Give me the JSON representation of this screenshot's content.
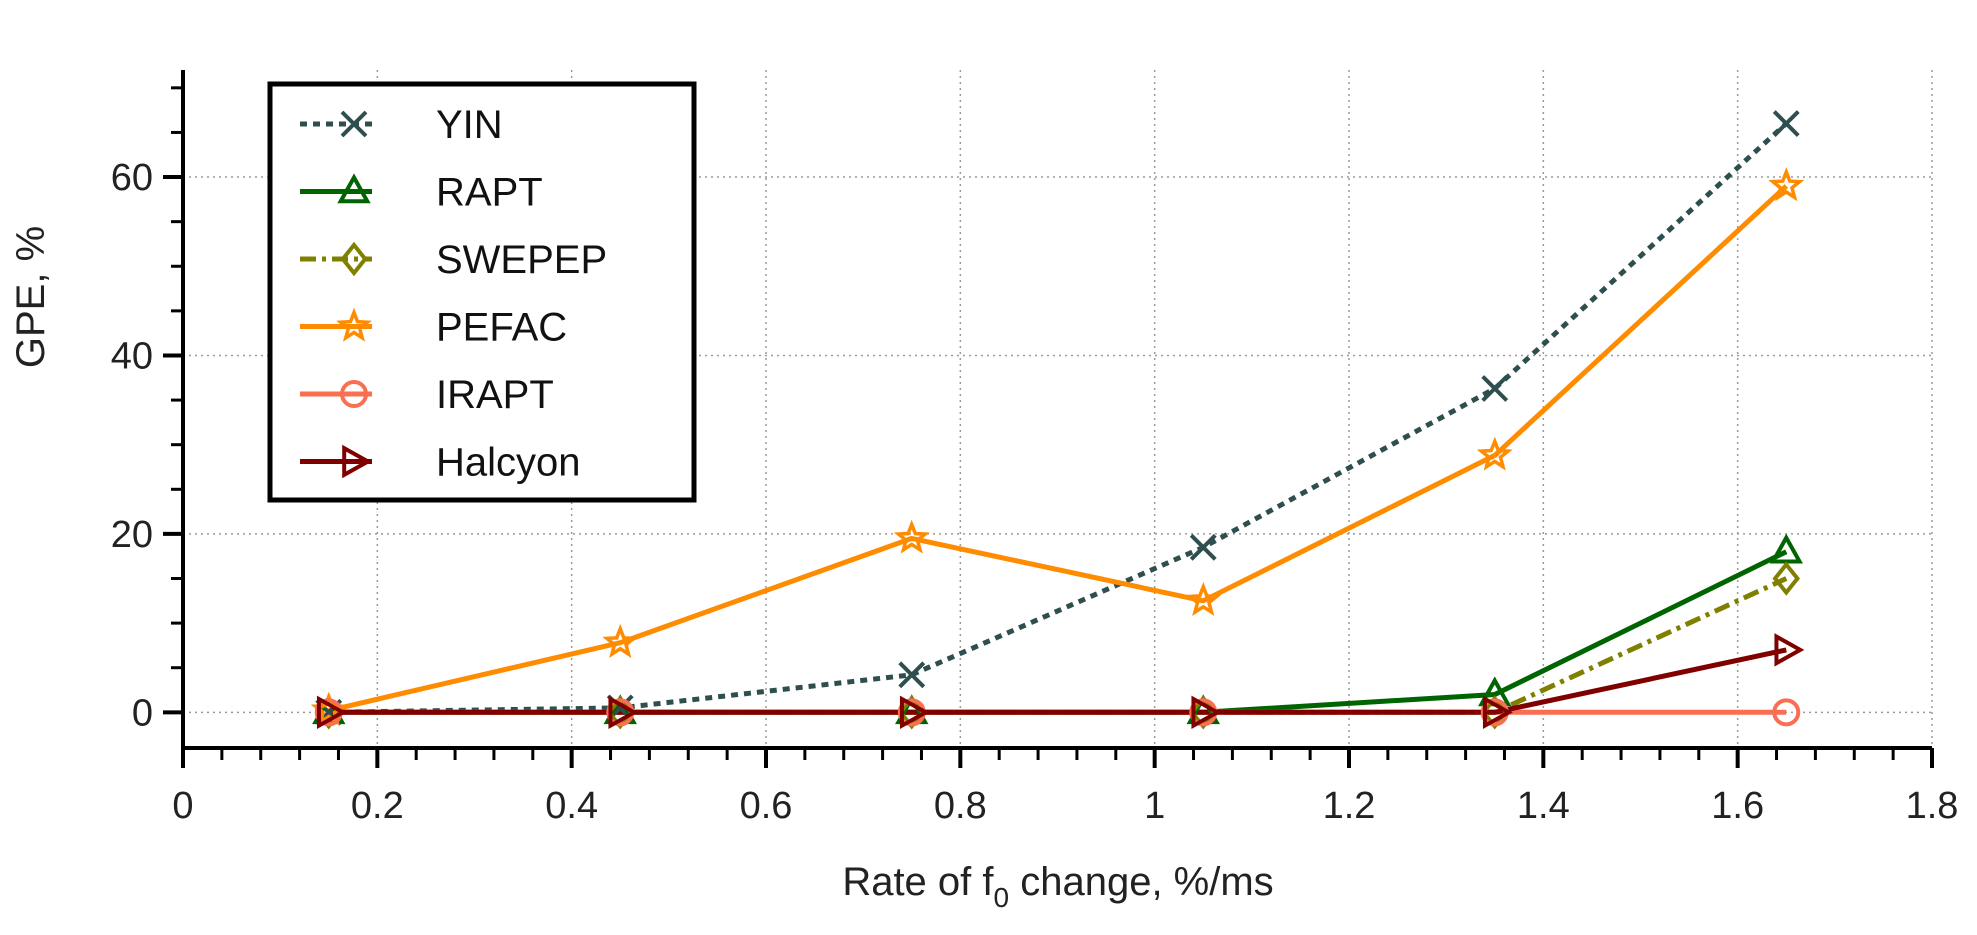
{
  "chart_data": {
    "type": "line",
    "title": "",
    "xlabel": "Rate of f",
    "xlabel_sub": "0",
    "xlabel_suffix": " change, %/ms",
    "ylabel": "GPE, %",
    "xlim": [
      0,
      1.8
    ],
    "ylim": [
      -4,
      72
    ],
    "xticks": [
      0,
      0.2,
      0.4,
      0.6,
      0.8,
      1,
      1.2,
      1.4,
      1.6,
      1.8
    ],
    "xtick_labels": [
      "0",
      "0.2",
      "0.4",
      "0.6",
      "0.8",
      "1",
      "1.2",
      "1.4",
      "1.6",
      "1.8"
    ],
    "yticks": [
      0,
      20,
      40,
      60
    ],
    "ytick_labels": [
      "0",
      "20",
      "40",
      "60"
    ],
    "grid": true,
    "legend_position": "top-left",
    "x": [
      0.15,
      0.45,
      0.75,
      1.05,
      1.35,
      1.65
    ],
    "series": [
      {
        "name": "YIN",
        "values": [
          0,
          0.5,
          4.2,
          18.5,
          36.3,
          66
        ],
        "color": "#2f4f4f",
        "dash": "dotted",
        "marker": "x"
      },
      {
        "name": "RAPT",
        "values": [
          0,
          0,
          0,
          0,
          2,
          18
        ],
        "color": "#006400",
        "dash": "solid",
        "marker": "triangle"
      },
      {
        "name": "SWEPEP",
        "values": [
          0,
          0,
          0,
          0,
          0,
          15
        ],
        "color": "#808000",
        "dash": "dashdot",
        "marker": "diamond"
      },
      {
        "name": "PEFAC",
        "values": [
          0.2,
          7.8,
          19.5,
          12.5,
          28.8,
          59
        ],
        "color": "#ff8c00",
        "dash": "solid",
        "marker": "star"
      },
      {
        "name": "IRAPT",
        "values": [
          0,
          0,
          0,
          0,
          0,
          0
        ],
        "color": "#fa6e52",
        "dash": "solid",
        "marker": "circle"
      },
      {
        "name": "Halcyon",
        "values": [
          0,
          0,
          0,
          0,
          0,
          7
        ],
        "color": "#800000",
        "dash": "solid",
        "marker": "triangle-right"
      }
    ]
  }
}
